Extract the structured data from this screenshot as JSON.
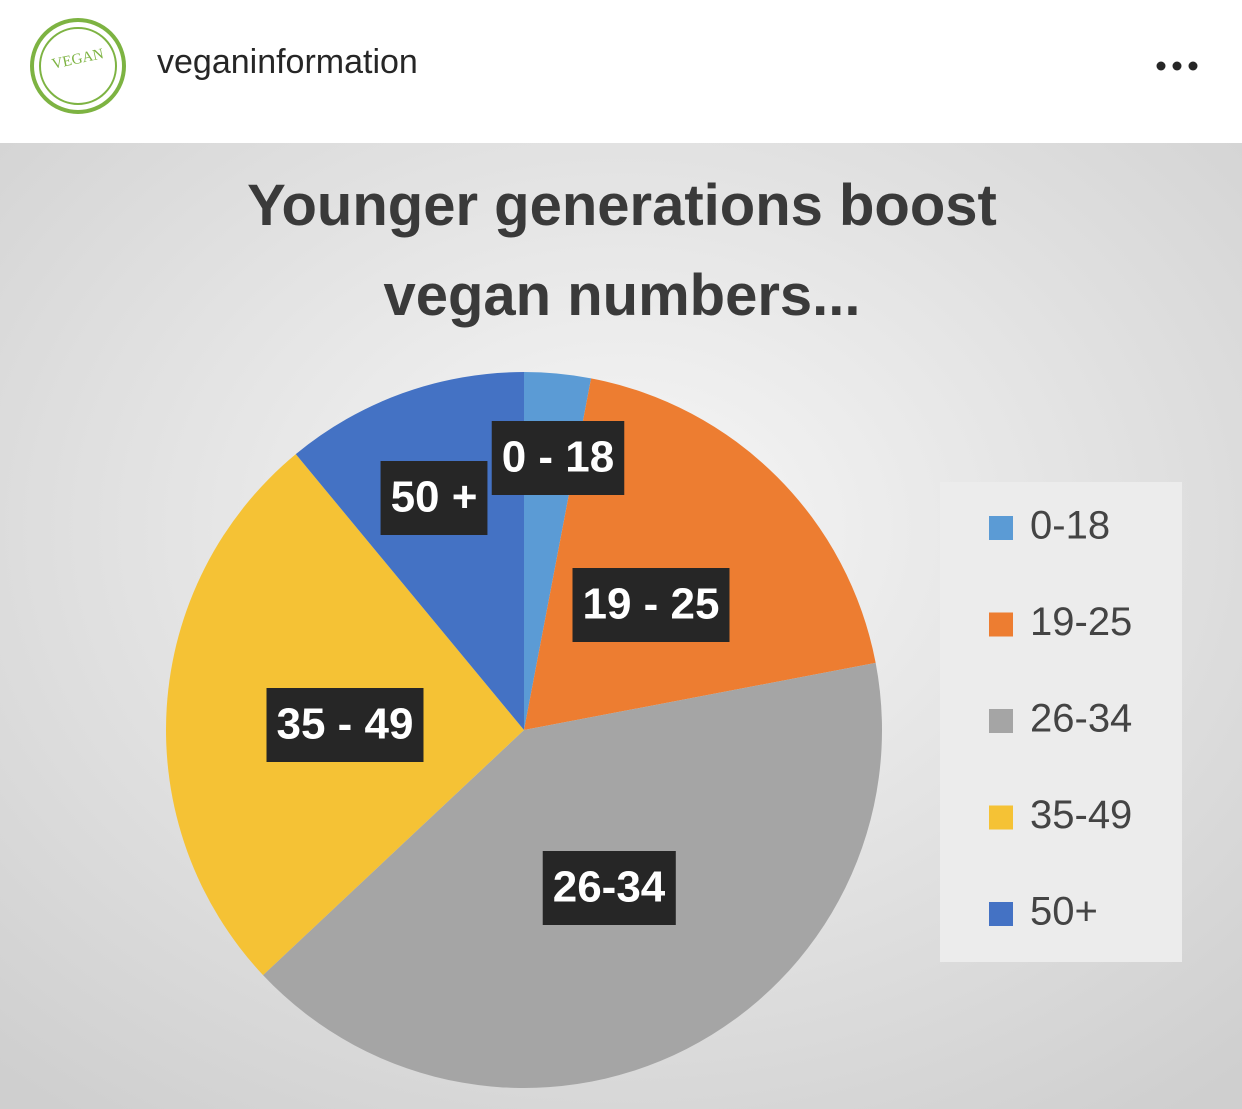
{
  "header": {
    "username": "veganinformation",
    "avatar_text": "VEGAN"
  },
  "chart_data": {
    "type": "pie",
    "title": "Younger generations boost vegan numbers...",
    "categories": [
      "0-18",
      "19-25",
      "26-34",
      "35-49",
      "50+"
    ],
    "values": [
      3,
      19,
      41,
      26,
      11
    ],
    "data_labels": [
      "0 - 18",
      "19 - 25",
      "26-34",
      "35 - 49",
      "50 +"
    ],
    "colors": [
      "#5b9bd5",
      "#ed7d31",
      "#a5a5a5",
      "#f5c235",
      "#4472c4"
    ],
    "legend": "right"
  }
}
